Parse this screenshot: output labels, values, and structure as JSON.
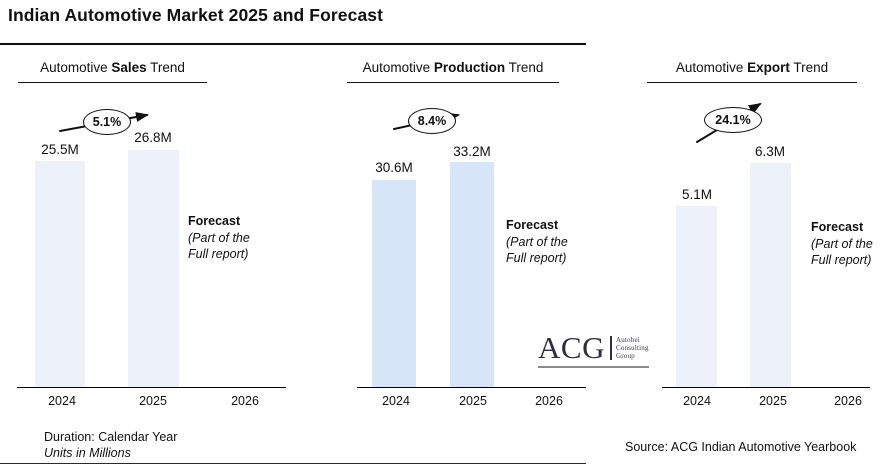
{
  "page": {
    "title": "Indian Automotive Market 2025 and Forecast"
  },
  "footer": {
    "duration": "Duration: Calendar Year",
    "units": "Units in Millions",
    "source": "Source: ACG Indian Automotive Yearbook"
  },
  "logo": {
    "acronym": "ACG",
    "name_line1": "Autobei",
    "name_line2": "Consulting",
    "name_line3": "Group"
  },
  "forecast_note": {
    "label": "Forecast",
    "line1": "(Part of the",
    "line2": "Full report)"
  },
  "chart_data": [
    {
      "type": "bar",
      "title": "Automotive Sales Trend",
      "title_prefix": "Automotive",
      "title_emphasis": "Sales",
      "title_suffix": "Trend",
      "categories": [
        "2024",
        "2025",
        "2026"
      ],
      "values": [
        25.5,
        26.8,
        null
      ],
      "value_labels": [
        "25.5M",
        "26.8M"
      ],
      "growth_label": "5.1%",
      "bar_color": "#edf1fa"
    },
    {
      "type": "bar",
      "title": "Automotive Production Trend",
      "title_prefix": "Automotive",
      "title_emphasis": "Production",
      "title_suffix": "Trend",
      "categories": [
        "2024",
        "2025",
        "2026"
      ],
      "values": [
        30.6,
        33.2,
        null
      ],
      "value_labels": [
        "30.6M",
        "33.2M"
      ],
      "growth_label": "8.4%",
      "bar_color": "#d6e5f7"
    },
    {
      "type": "bar",
      "title": "Automotive Export Trend",
      "title_prefix": "Automotive",
      "title_emphasis": "Export",
      "title_suffix": "Trend",
      "categories": [
        "2024",
        "2025",
        "2026"
      ],
      "values": [
        5.1,
        6.3,
        null
      ],
      "value_labels": [
        "5.1M",
        "6.3M"
      ],
      "growth_label": "24.1%",
      "bar_color": "#edf1fa"
    }
  ]
}
